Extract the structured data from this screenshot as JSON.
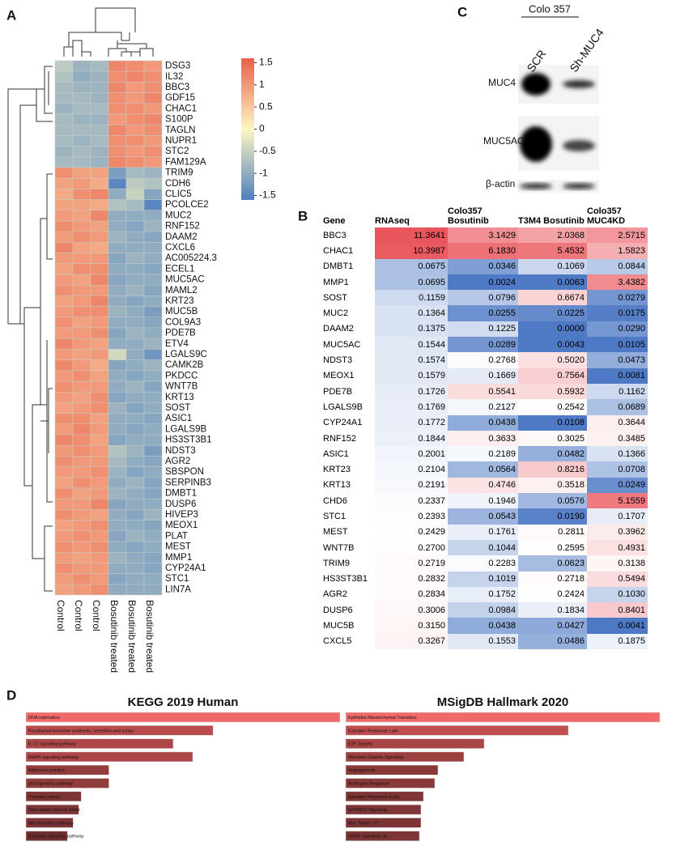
{
  "panel_labels": [
    "A",
    "B",
    "C",
    "D"
  ],
  "chart_data": [
    {
      "type": "heatmap",
      "columns": [
        "Control",
        "Control",
        "Control",
        "Bosutinib treated",
        "Bosutinib treated",
        "Bosutinib treated"
      ],
      "rows": [
        "DSG3",
        "IL32",
        "BBC3",
        "GDF15",
        "CHAC1",
        "S100P",
        "TAGLN",
        "NUPR1",
        "STC2",
        "FAM129A",
        "TRIM9",
        "CDH6",
        "CLIC5",
        "PCOLCE2",
        "MUC2",
        "RNF152",
        "DAAM2",
        "CXCL6",
        "AC005224.3",
        "ECEL1",
        "MUC5AC",
        "MAML2",
        "KRT23",
        "MUC5B",
        "COL9A3",
        "PDE7B",
        "ETV4",
        "LGALS9C",
        "CAMK2B",
        "PKDCC",
        "WNT7B",
        "KRT13",
        "SOST",
        "ASIC1",
        "LGALS9B",
        "HS3ST3B1",
        "NDST3",
        "AGR2",
        "SBSPON",
        "SERPINB3",
        "DMBT1",
        "DUSP6",
        "HIVEP3",
        "MEOX1",
        "PLAT",
        "MEST",
        "MMP1",
        "CYP24A1",
        "STC1",
        "LIN7A"
      ],
      "z": [
        [
          -0.6,
          -0.9,
          -0.8,
          1.2,
          1.1,
          1.0
        ],
        [
          -0.7,
          -1.0,
          -0.9,
          1.1,
          1.2,
          1.1
        ],
        [
          -0.8,
          -0.9,
          -0.9,
          1.2,
          1.0,
          1.1
        ],
        [
          -0.8,
          -0.8,
          -0.9,
          1.1,
          1.0,
          1.2
        ],
        [
          -0.9,
          -0.8,
          -0.8,
          1.1,
          1.1,
          1.0
        ],
        [
          -0.8,
          -0.9,
          -0.9,
          1.0,
          1.1,
          1.2
        ],
        [
          -0.8,
          -0.8,
          -0.8,
          1.2,
          1.0,
          1.1
        ],
        [
          -0.8,
          -0.9,
          -0.8,
          1.1,
          1.1,
          1.0
        ],
        [
          -0.9,
          -0.8,
          -0.9,
          1.1,
          1.0,
          1.1
        ],
        [
          -0.8,
          -0.8,
          -0.9,
          1.2,
          1.1,
          1.0
        ],
        [
          1.1,
          0.9,
          0.9,
          -1.2,
          -0.8,
          -0.9
        ],
        [
          0.9,
          1.0,
          0.8,
          -1.5,
          -0.6,
          -0.7
        ],
        [
          0.8,
          1.1,
          1.2,
          -1.0,
          -0.5,
          -1.1
        ],
        [
          0.9,
          0.9,
          0.8,
          -0.7,
          -0.8,
          -1.5
        ],
        [
          1.0,
          0.9,
          1.2,
          -1.0,
          -1.0,
          -1.0
        ],
        [
          1.1,
          1.0,
          0.9,
          -1.0,
          -1.1,
          -0.9
        ],
        [
          1.0,
          1.1,
          1.0,
          -0.9,
          -1.0,
          -1.1
        ],
        [
          1.2,
          0.9,
          0.8,
          -1.0,
          -1.0,
          -1.0
        ],
        [
          1.0,
          1.0,
          1.0,
          -1.1,
          -0.9,
          -1.0
        ],
        [
          0.9,
          1.1,
          1.1,
          -1.0,
          -1.0,
          -1.1
        ],
        [
          1.0,
          0.9,
          1.2,
          -1.1,
          -1.0,
          -1.0
        ],
        [
          1.1,
          1.0,
          1.0,
          -1.0,
          -0.9,
          -1.1
        ],
        [
          0.9,
          1.0,
          1.2,
          -1.0,
          -1.1,
          -1.0
        ],
        [
          1.0,
          1.1,
          1.1,
          -0.9,
          -1.0,
          -1.2
        ],
        [
          1.1,
          0.9,
          1.0,
          -1.0,
          -1.0,
          -1.1
        ],
        [
          1.0,
          1.0,
          1.1,
          -1.1,
          -0.9,
          -1.0
        ],
        [
          1.2,
          1.0,
          0.9,
          -1.0,
          -1.0,
          -0.9
        ],
        [
          1.0,
          0.9,
          1.0,
          -0.4,
          -1.0,
          -1.3
        ],
        [
          1.2,
          1.0,
          0.8,
          -1.1,
          -1.0,
          -0.9
        ],
        [
          1.0,
          1.1,
          0.9,
          -1.0,
          -1.1,
          -1.0
        ],
        [
          1.1,
          1.0,
          1.0,
          -1.0,
          -0.9,
          -1.1
        ],
        [
          1.0,
          0.9,
          1.1,
          -1.1,
          -1.0,
          -1.0
        ],
        [
          0.9,
          1.0,
          1.1,
          -0.9,
          -1.1,
          -1.0
        ],
        [
          1.1,
          1.1,
          0.9,
          -1.0,
          -1.0,
          -1.1
        ],
        [
          1.0,
          1.2,
          1.0,
          -1.0,
          -1.1,
          -1.0
        ],
        [
          1.2,
          1.1,
          0.9,
          -1.1,
          -1.0,
          -1.0
        ],
        [
          1.0,
          1.1,
          1.0,
          -0.7,
          -0.9,
          -1.2
        ],
        [
          1.1,
          1.0,
          1.0,
          -0.8,
          -1.0,
          -1.1
        ],
        [
          1.0,
          1.0,
          1.1,
          -0.9,
          -1.1,
          -1.0
        ],
        [
          0.9,
          1.1,
          1.0,
          -1.0,
          -0.9,
          -1.1
        ],
        [
          1.1,
          0.9,
          1.0,
          -0.9,
          -1.0,
          -1.1
        ],
        [
          1.0,
          1.0,
          1.2,
          -1.1,
          -1.0,
          -1.0
        ],
        [
          1.1,
          1.0,
          0.9,
          -1.0,
          -1.1,
          -0.9
        ],
        [
          0.9,
          1.0,
          1.1,
          -1.0,
          -1.0,
          -1.1
        ],
        [
          1.0,
          1.1,
          1.0,
          -1.1,
          -0.9,
          -1.0
        ],
        [
          1.1,
          1.0,
          1.1,
          -1.0,
          -1.1,
          -1.0
        ],
        [
          1.0,
          0.9,
          1.0,
          -0.9,
          -1.0,
          -1.1
        ],
        [
          1.1,
          1.0,
          1.0,
          -1.0,
          -1.0,
          -1.1
        ],
        [
          1.0,
          1.1,
          1.0,
          -1.1,
          -1.0,
          -1.0
        ],
        [
          0.9,
          1.0,
          1.1,
          -1.0,
          -1.0,
          -1.0
        ]
      ],
      "zlim": [
        -1.6,
        1.6
      ],
      "colorbar_ticks": [
        1.5,
        1,
        0.5,
        0,
        -0.5,
        -1,
        -1.5
      ],
      "colormap": [
        "#4f7fbf",
        "#fdf7c2",
        "#e9604b"
      ]
    },
    {
      "type": "bar",
      "orientation": "horizontal",
      "title": "KEGG 2019 Human",
      "categories": [
        "DNA replication",
        "Parathyroid hormone synthesis, secretion and action",
        "IL-17 signaling pathway",
        "MAPK signaling pathway",
        "Adherens junction",
        "p53 signaling pathway",
        "Prostate cancer",
        "One carbon pool by folate",
        "Wnt signaling pathway",
        "Estrogen signaling pathway"
      ],
      "values": [
        386,
        230,
        181,
        205,
        102,
        102,
        68,
        65,
        58,
        51
      ],
      "colors": [
        "#f06a6a",
        "#b84b4b",
        "#ad4747",
        "#ad4747",
        "#923c3c",
        "#923c3c",
        "#7e3535",
        "#7e3535",
        "#7e3535",
        "#703030"
      ]
    },
    {
      "type": "bar",
      "orientation": "horizontal",
      "title": "MSigDB Hallmark 2020",
      "categories": [
        "Epithelial Mesenchymal Transition",
        "Estrogen Response Late",
        "E2F Targets",
        "Wnt-beta Catenin Signaling",
        "Angiogenesis",
        "Androgen Response",
        "Estrogen Response Early",
        "mTORC1 Signaling",
        "Myc Targets V1",
        "KRAS Signaling Up"
      ],
      "values": [
        388,
        275,
        171,
        146,
        114,
        110,
        96,
        93,
        93,
        91
      ],
      "colors": [
        "#f06a6a",
        "#c04e4e",
        "#a84545",
        "#9c4040",
        "#8a3939",
        "#8a3939",
        "#7e3535",
        "#7e3535",
        "#7e3535",
        "#7e3535"
      ]
    }
  ],
  "table": {
    "header": [
      "Gene",
      "RNAseq",
      "Colo357 Bosutinib",
      "T3M4 Bosutinib",
      "Colo357 MUC4KD"
    ],
    "rows": [
      [
        "BBC3",
        "11.3641",
        "3.1429",
        "2.0368",
        "2.5715"
      ],
      [
        "CHAC1",
        "10.3987",
        "6.1830",
        "5.4532",
        "1.5823"
      ],
      [
        "DMBT1",
        "0.0675",
        "0.0346",
        "0.1069",
        "0.0844"
      ],
      [
        "MMP1",
        "0.0695",
        "0.0024",
        "0.0063",
        "3.4382"
      ],
      [
        "SOST",
        "0.1159",
        "0.0796",
        "0.6674",
        "0.0279"
      ],
      [
        "MUC2",
        "0.1364",
        "0.0255",
        "0.0225",
        "0.0175"
      ],
      [
        "DAAM2",
        "0.1375",
        "0.1225",
        "0.0000",
        "0.0290"
      ],
      [
        "MUC5AC",
        "0.1544",
        "0.0289",
        "0.0043",
        "0.0105"
      ],
      [
        "NDST3",
        "0.1574",
        "0.2768",
        "0.5020",
        "0.0473"
      ],
      [
        "MEOX1",
        "0.1579",
        "0.1669",
        "0.7564",
        "0.0081"
      ],
      [
        "PDE7B",
        "0.1726",
        "0.5541",
        "0.5932",
        "0.1162"
      ],
      [
        "LGALS9B",
        "0.1769",
        "0.2127",
        "0.2542",
        "0.0689"
      ],
      [
        "CYP24A1",
        "0.1772",
        "0.0438",
        "0.0108",
        "0.3644"
      ],
      [
        "RNF152",
        "0.1844",
        "0.3633",
        "0.3025",
        "0.3485"
      ],
      [
        "ASIC1",
        "0.2001",
        "0.2189",
        "0.0482",
        "0.1366"
      ],
      [
        "KRT23",
        "0.2104",
        "0.0564",
        "0.8216",
        "0.0708"
      ],
      [
        "KRT13",
        "0.2191",
        "0.4746",
        "0.3518",
        "0.0249"
      ],
      [
        "CHD6",
        "0.2337",
        "0.1946",
        "0.0576",
        "5.1559"
      ],
      [
        "STC1",
        "0.2393",
        "0.0543",
        "0.0190",
        "0.1707"
      ],
      [
        "MEST",
        "0.2429",
        "0.1761",
        "0.2811",
        "0.3962"
      ],
      [
        "WNT7B",
        "0.2700",
        "0.1044",
        "0.2595",
        "0.4931"
      ],
      [
        "TRIM9",
        "0.2719",
        "0.2283",
        "0.0623",
        "0.3138"
      ],
      [
        "HS3ST3B1",
        "0.2832",
        "0.1019",
        "0.2718",
        "0.5494"
      ],
      [
        "AGR2",
        "0.2834",
        "0.1752",
        "0.2424",
        "0.1030"
      ],
      [
        "DUSP6",
        "0.3006",
        "0.0984",
        "0.1834",
        "0.8401"
      ],
      [
        "MUC5B",
        "0.3150",
        "0.0438",
        "0.0427",
        "0.0041"
      ],
      [
        "CXCL5",
        "0.3267",
        "0.1553",
        "0.0486",
        "0.1875"
      ]
    ]
  },
  "blot": {
    "title": "Colo 357",
    "lanes": [
      "SCR",
      "Sh-MUC4"
    ],
    "rows": [
      "MUC4",
      "MUC5AC",
      "β-actin"
    ]
  }
}
